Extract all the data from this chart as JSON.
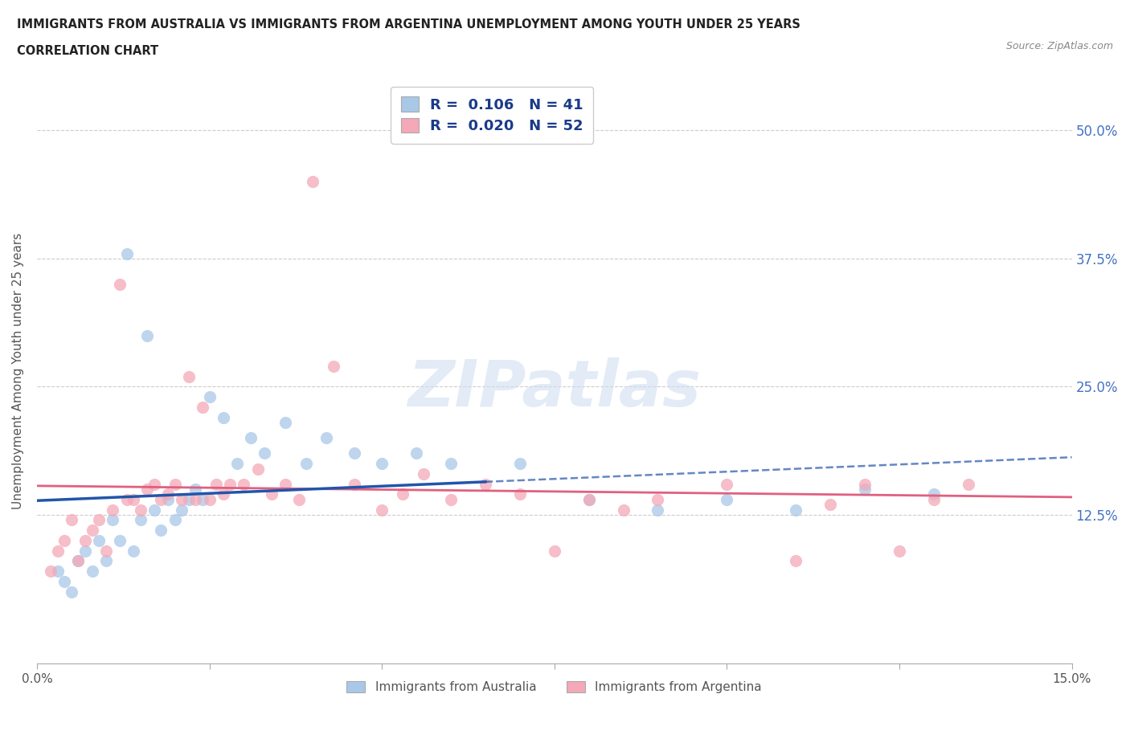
{
  "title_line1": "IMMIGRANTS FROM AUSTRALIA VS IMMIGRANTS FROM ARGENTINA UNEMPLOYMENT AMONG YOUTH UNDER 25 YEARS",
  "title_line2": "CORRELATION CHART",
  "source": "Source: ZipAtlas.com",
  "ylabel": "Unemployment Among Youth under 25 years",
  "xlim": [
    0.0,
    0.15
  ],
  "ylim": [
    -0.02,
    0.55
  ],
  "x_ticks": [
    0.0,
    0.025,
    0.05,
    0.075,
    0.1,
    0.125,
    0.15
  ],
  "x_tick_labels": [
    "0.0%",
    "",
    "",
    "",
    "",
    "",
    "15.0%"
  ],
  "y_ticks": [
    0.0,
    0.125,
    0.25,
    0.375,
    0.5
  ],
  "y_tick_labels_right": [
    "",
    "12.5%",
    "25.0%",
    "37.5%",
    "50.0%"
  ],
  "watermark": "ZIPatlas",
  "australia_color": "#a8c8e8",
  "argentina_color": "#f4a8b8",
  "australia_line_color": "#2255aa",
  "argentina_line_color": "#e06080",
  "legend_R_australia": "R =  0.106",
  "legend_N_australia": "N = 41",
  "legend_R_argentina": "R =  0.020",
  "legend_N_argentina": "N = 52",
  "legend_label_australia": "Immigrants from Australia",
  "legend_label_argentina": "Immigrants from Argentina",
  "australia_x": [
    0.003,
    0.004,
    0.005,
    0.006,
    0.007,
    0.008,
    0.009,
    0.01,
    0.011,
    0.012,
    0.013,
    0.014,
    0.015,
    0.016,
    0.017,
    0.018,
    0.019,
    0.02,
    0.021,
    0.022,
    0.023,
    0.024,
    0.025,
    0.027,
    0.029,
    0.031,
    0.033,
    0.036,
    0.039,
    0.042,
    0.046,
    0.05,
    0.055,
    0.06,
    0.07,
    0.08,
    0.09,
    0.1,
    0.11,
    0.12,
    0.13
  ],
  "australia_y": [
    0.07,
    0.06,
    0.05,
    0.08,
    0.09,
    0.07,
    0.1,
    0.08,
    0.12,
    0.1,
    0.38,
    0.09,
    0.12,
    0.3,
    0.13,
    0.11,
    0.14,
    0.12,
    0.13,
    0.14,
    0.15,
    0.14,
    0.24,
    0.22,
    0.175,
    0.2,
    0.185,
    0.215,
    0.175,
    0.2,
    0.185,
    0.175,
    0.185,
    0.175,
    0.175,
    0.14,
    0.13,
    0.14,
    0.13,
    0.15,
    0.145
  ],
  "argentina_x": [
    0.002,
    0.003,
    0.004,
    0.005,
    0.006,
    0.007,
    0.008,
    0.009,
    0.01,
    0.011,
    0.012,
    0.013,
    0.014,
    0.015,
    0.016,
    0.017,
    0.018,
    0.019,
    0.02,
    0.021,
    0.022,
    0.023,
    0.024,
    0.025,
    0.026,
    0.027,
    0.028,
    0.03,
    0.032,
    0.034,
    0.036,
    0.038,
    0.04,
    0.043,
    0.046,
    0.05,
    0.053,
    0.056,
    0.06,
    0.065,
    0.07,
    0.075,
    0.08,
    0.085,
    0.09,
    0.1,
    0.11,
    0.115,
    0.12,
    0.125,
    0.13,
    0.135
  ],
  "argentina_y": [
    0.07,
    0.09,
    0.1,
    0.12,
    0.08,
    0.1,
    0.11,
    0.12,
    0.09,
    0.13,
    0.35,
    0.14,
    0.14,
    0.13,
    0.15,
    0.155,
    0.14,
    0.145,
    0.155,
    0.14,
    0.26,
    0.14,
    0.23,
    0.14,
    0.155,
    0.145,
    0.155,
    0.155,
    0.17,
    0.145,
    0.155,
    0.14,
    0.45,
    0.27,
    0.155,
    0.13,
    0.145,
    0.165,
    0.14,
    0.155,
    0.145,
    0.09,
    0.14,
    0.13,
    0.14,
    0.155,
    0.08,
    0.135,
    0.155,
    0.09,
    0.14,
    0.155
  ]
}
